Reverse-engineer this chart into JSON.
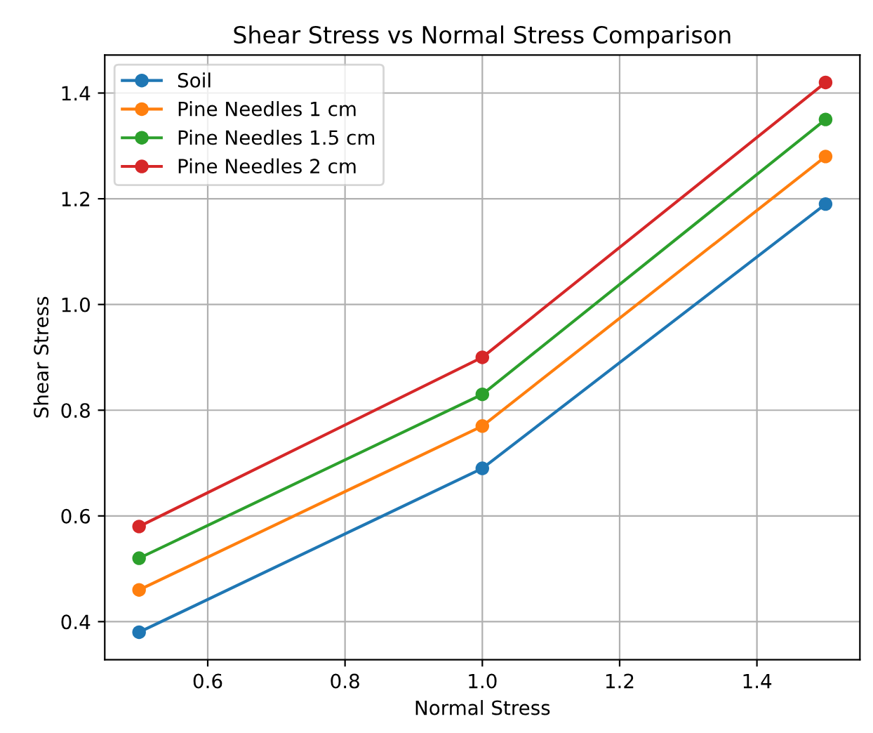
{
  "chart_data": {
    "type": "line",
    "title": "Shear Stress vs Normal Stress Comparison",
    "xlabel": "Normal Stress",
    "ylabel": "Shear Stress",
    "x": [
      0.5,
      1.0,
      1.5
    ],
    "series": [
      {
        "name": "Soil",
        "color": "#1f77b4",
        "values": [
          0.38,
          0.69,
          1.19
        ]
      },
      {
        "name": "Pine Needles 1 cm",
        "color": "#ff7f0e",
        "values": [
          0.46,
          0.77,
          1.28
        ]
      },
      {
        "name": "Pine Needles 1.5 cm",
        "color": "#2ca02c",
        "values": [
          0.52,
          0.83,
          1.35
        ]
      },
      {
        "name": "Pine Needles 2 cm",
        "color": "#d62728",
        "values": [
          0.58,
          0.9,
          1.42
        ]
      }
    ],
    "xlim": [
      0.45,
      1.55
    ],
    "ylim": [
      0.328,
      1.472
    ],
    "xticks": [
      0.6,
      0.8,
      {
        "value": 1,
        "label": "1.0"
      },
      1.2,
      1.4
    ],
    "yticks": [
      0.4,
      0.6,
      0.8,
      {
        "value": 1,
        "label": "1.0"
      },
      1.2,
      1.4
    ],
    "grid": true,
    "legend": "top left",
    "marker": "circle",
    "line_style": "solid"
  }
}
